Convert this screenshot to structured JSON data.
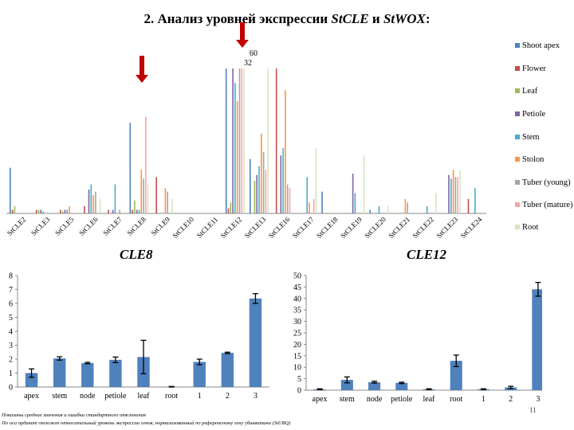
{
  "slide": {
    "title_prefix": "2.  Анализ уровней  экспрессии ",
    "title_gene1": "StCLE",
    "title_mid": " и ",
    "title_gene2": "StWOX",
    "title_suffix": ":",
    "top_callout_line1": "60",
    "top_callout_line2": "32",
    "page_number": "11",
    "footnote_line1": "Показаны средние значения и ошибка стандартного отклонения",
    "footnote_line2": "По оси ординат отложен относительный уровень экспрессии генов, нормализованный по референсному гену убиквитина (StUBQ)",
    "arrow_color": "#c00000"
  },
  "chart_data": [
    {
      "type": "bar",
      "title": "",
      "categories": [
        "StCLE2",
        "StCLE3",
        "StCLE5",
        "StCLE6",
        "StCLE7",
        "StCLE8",
        "StCLE9",
        "StCLE10",
        "StCLE11",
        "StCLE12",
        "StCLE13",
        "StCLE16",
        "StCLE17",
        "StCLE18",
        "StCLE19",
        "StCLE20",
        "StCLE21",
        "StCLE22",
        "StCLE23",
        "StCLE24"
      ],
      "ylim": [
        0,
        20
      ],
      "series": [
        {
          "name": "Shoot apex",
          "color": "#4f81bd",
          "values": [
            6.3,
            0,
            0,
            0,
            0,
            12.5,
            0,
            0,
            0,
            20,
            7.5,
            0,
            0,
            3,
            0,
            0.5,
            0,
            0,
            0,
            0
          ]
        },
        {
          "name": "Flower",
          "color": "#c0504d",
          "values": [
            0.5,
            0.5,
            0.5,
            1,
            0.5,
            0.5,
            5,
            0,
            0,
            0.7,
            0,
            20,
            0,
            0,
            0,
            0,
            0,
            0,
            0,
            2
          ]
        },
        {
          "name": "Leaf",
          "color": "#9bbb59",
          "values": [
            1,
            0.5,
            0.3,
            0,
            0,
            1.8,
            0,
            0,
            0,
            1.5,
            4.5,
            0,
            0,
            0,
            0,
            0,
            0,
            0,
            0,
            0
          ]
        },
        {
          "name": "Petiole",
          "color": "#8064a2",
          "values": [
            0,
            0.5,
            0.5,
            3.3,
            0.5,
            0.5,
            0,
            0,
            0,
            20,
            5.3,
            8,
            0,
            0,
            5.5,
            0,
            0,
            0,
            5.3,
            0
          ]
        },
        {
          "name": "Stem",
          "color": "#4bacc6",
          "values": [
            0,
            0.3,
            0.5,
            4,
            4,
            0.5,
            0,
            0,
            0,
            18,
            6.5,
            9,
            5,
            0,
            2.8,
            1,
            0,
            1,
            4.8,
            3.5
          ]
        },
        {
          "name": "Stolon",
          "color": "#f79646",
          "values": [
            0,
            0,
            1,
            2.5,
            0,
            6,
            3.5,
            0,
            0,
            15.5,
            11,
            17,
            1.5,
            0,
            0,
            0,
            2,
            0,
            6,
            0
          ]
        },
        {
          "name": "Tuber (young)",
          "color": "#a5a5a5",
          "values": [
            0,
            0,
            0,
            3,
            0.5,
            4.8,
            3,
            0,
            0,
            20,
            8.5,
            4,
            0,
            0,
            0,
            0,
            1.5,
            0,
            5,
            0
          ]
        },
        {
          "name": "Tuber (mature)",
          "color": "#f4a6a6",
          "values": [
            0,
            0,
            0,
            0,
            0,
            13.3,
            0,
            0,
            0,
            20,
            6,
            3.5,
            2,
            0,
            0,
            0,
            0,
            0,
            5,
            0
          ]
        },
        {
          "name": "Root",
          "color": "#d7e4bd",
          "values": [
            0,
            0,
            0,
            2,
            0,
            4,
            2,
            0,
            0,
            20,
            20,
            0,
            9,
            0,
            8,
            1,
            0,
            2.8,
            6,
            0
          ]
        }
      ]
    },
    {
      "type": "bar",
      "title": "CLE8",
      "categories": [
        "apex",
        "stem",
        "node",
        "petiole",
        "leaf",
        "root",
        "1",
        "2",
        "3"
      ],
      "values": [
        1.0,
        2.05,
        1.72,
        1.95,
        2.15,
        0.02,
        1.8,
        2.45,
        6.35
      ],
      "errors": [
        0.3,
        0.12,
        0.05,
        0.2,
        1.2,
        0.02,
        0.2,
        0.05,
        0.35
      ],
      "ylim": [
        0,
        8
      ],
      "yticks": [
        "0",
        "1",
        "2",
        "3",
        "4",
        "5",
        "6",
        "7",
        "8"
      ],
      "color": "#4f81bd"
    },
    {
      "type": "bar",
      "title": "CLE12",
      "categories": [
        "apex",
        "stem",
        "node",
        "petiole",
        "leaf",
        "root",
        "1",
        "2",
        "3"
      ],
      "values": [
        0.4,
        4.5,
        3.5,
        3.2,
        0.4,
        12.8,
        0.4,
        1.2,
        44.0
      ],
      "errors": [
        0.2,
        1.3,
        0.4,
        0.3,
        0.2,
        2.5,
        0.2,
        0.5,
        3.0
      ],
      "ylim": [
        0,
        50
      ],
      "yticks": [
        "0",
        "5",
        "10",
        "15",
        "20",
        "25",
        "30",
        "35",
        "40",
        "45",
        "50"
      ],
      "color": "#4f81bd"
    }
  ]
}
